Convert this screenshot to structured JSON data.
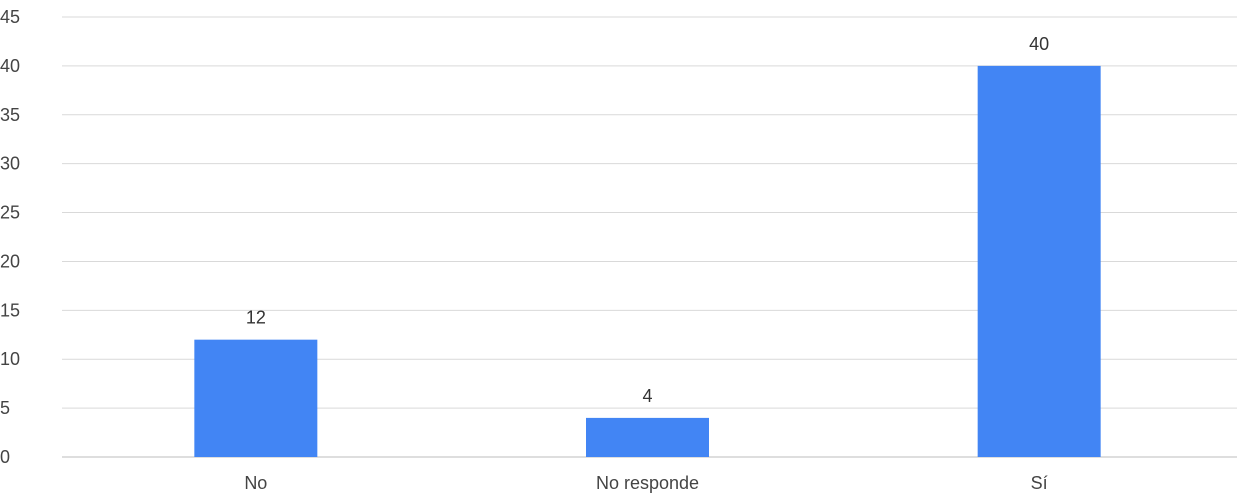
{
  "chart_data": {
    "type": "bar",
    "categories": [
      "No",
      "No responde",
      "Sí"
    ],
    "values": [
      12,
      4,
      40
    ],
    "title": "",
    "xlabel": "",
    "ylabel": "",
    "ylim": [
      0,
      45
    ],
    "yticks": [
      0,
      5,
      10,
      15,
      20,
      25,
      30,
      35,
      40,
      45
    ],
    "grid": true,
    "legend": "none",
    "bar_color": "#4285f4",
    "grid_color": "#d9d9d9",
    "data_labels": true
  }
}
